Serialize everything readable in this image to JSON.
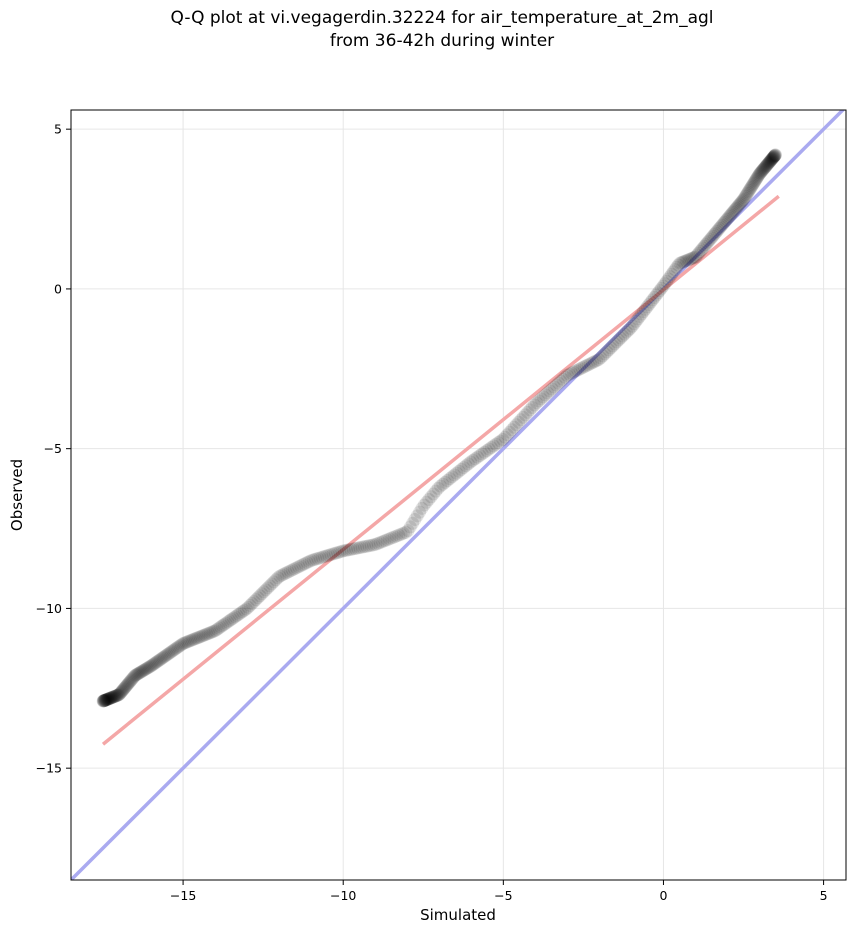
{
  "chart_data": {
    "type": "scatter",
    "title": "Q-Q plot at vi.vegagerdin.32224 for air_temperature_at_2m_agl",
    "subtitle": "from 36-42h during winter",
    "xlabel": "Simulated",
    "ylabel": "Observed",
    "xlim": [
      -18.5,
      5.7
    ],
    "ylim": [
      -18.5,
      5.6
    ],
    "xticks": [
      -15,
      -10,
      -5,
      0,
      5
    ],
    "yticks": [
      -15,
      -10,
      -5,
      0,
      5
    ],
    "xtick_labels": [
      "−15",
      "−10",
      "−5",
      "0",
      "5"
    ],
    "ytick_labels": [
      "−15",
      "−10",
      "−5",
      "0",
      "5"
    ],
    "grid": true,
    "reference_line": {
      "type": "identity",
      "color": "#aaaaf0"
    },
    "fit_line": {
      "x": [
        -17.5,
        3.6
      ],
      "y": [
        -14.25,
        2.9
      ],
      "color": "#f4a7a7"
    },
    "quantile_knots": {
      "x": [
        -17.5,
        -17.0,
        -16.5,
        -16.0,
        -15.0,
        -14.0,
        -13.0,
        -12.0,
        -11.0,
        -10.0,
        -9.0,
        -8.0,
        -7.5,
        -7.0,
        -6.0,
        -5.0,
        -4.0,
        -3.0,
        -2.0,
        -1.0,
        0.0,
        0.5,
        1.0,
        1.5,
        2.0,
        2.5,
        3.0,
        3.5
      ],
      "y": [
        -12.9,
        -12.7,
        -12.1,
        -11.8,
        -11.1,
        -10.7,
        -10.0,
        -9.0,
        -8.5,
        -8.2,
        -8.0,
        -7.6,
        -6.8,
        -6.2,
        -5.4,
        -4.7,
        -3.6,
        -2.7,
        -2.2,
        -1.2,
        0.1,
        0.8,
        1.0,
        1.6,
        2.2,
        2.8,
        3.6,
        4.2
      ]
    },
    "point_color": "#000000",
    "series": [
      {
        "name": "",
        "n_points": 430
      }
    ]
  }
}
